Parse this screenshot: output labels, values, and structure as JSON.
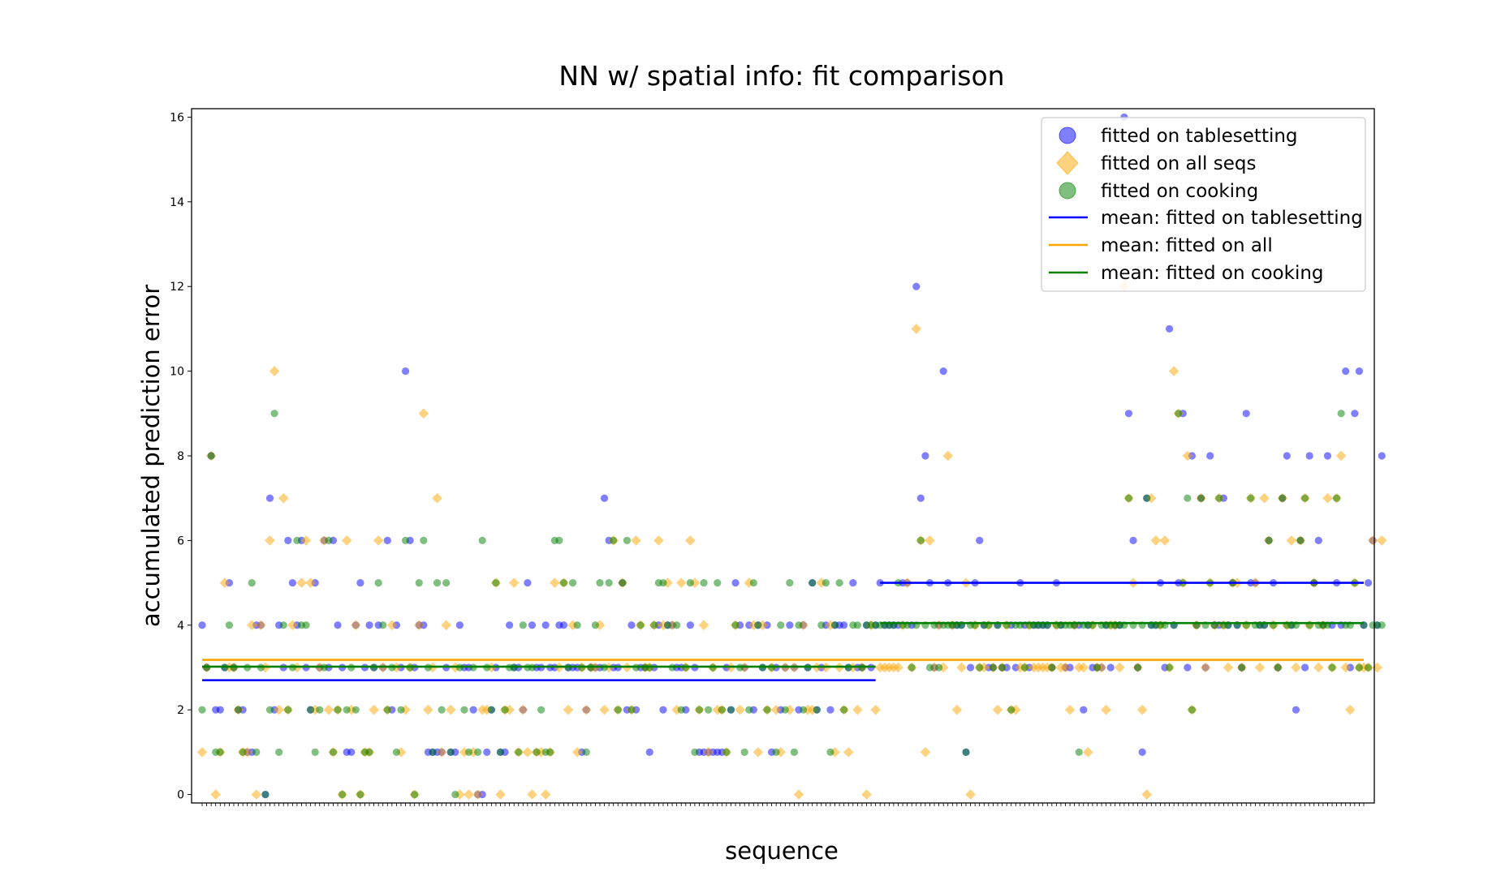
{
  "chart_data": {
    "type": "scatter",
    "title": "NN w/ spatial info: fit comparison",
    "xlabel": "sequence",
    "ylabel": "accumulated prediction error",
    "ylim": [
      -0.2,
      16.2
    ],
    "yticks": [
      0,
      2,
      4,
      6,
      8,
      10,
      12,
      14,
      16
    ],
    "grid": false,
    "legend_position": "top-right",
    "n_sequences": 258,
    "boundary_index": 150,
    "series": [
      {
        "name": "fitted on tablesetting",
        "marker": "circle",
        "color": "#0000ff",
        "values": [
          4,
          3,
          8,
          2,
          2,
          3,
          5,
          3,
          2,
          2,
          1,
          1,
          4,
          4,
          0,
          7,
          2,
          4,
          3,
          6,
          5,
          4,
          6,
          3,
          2,
          5,
          3,
          6,
          3,
          6,
          4,
          3,
          1,
          1,
          4,
          5,
          3,
          4,
          3,
          4,
          3,
          6,
          2,
          4,
          3,
          10,
          6,
          3,
          4,
          4,
          1,
          1,
          1,
          1,
          3,
          1,
          1,
          4,
          3,
          3,
          2,
          0,
          0,
          1,
          2,
          3,
          1,
          1,
          4,
          3,
          3,
          2,
          5,
          4,
          3,
          3,
          4,
          3,
          3,
          4,
          4,
          3,
          3,
          3,
          1,
          2,
          3,
          3,
          3,
          7,
          6,
          3,
          3,
          5,
          2,
          4,
          2,
          3,
          3,
          1,
          3,
          4,
          2,
          4,
          4,
          3,
          3,
          2,
          4,
          3,
          1,
          1,
          1,
          1,
          1,
          1,
          3,
          2,
          5,
          4,
          3,
          4,
          2,
          4,
          3,
          4,
          1,
          3,
          2,
          3,
          4,
          3,
          2,
          4,
          3,
          5,
          2,
          3,
          4,
          2,
          4,
          4,
          4,
          3,
          5,
          3,
          3,
          4,
          3,
          4,
          5,
          4,
          4,
          4,
          4,
          5,
          5,
          4,
          12,
          7,
          8,
          5,
          3,
          4,
          10,
          5,
          4,
          4,
          4,
          1,
          3,
          5,
          6,
          4,
          3,
          3,
          4,
          3,
          3,
          4,
          3,
          5,
          4,
          3,
          4,
          4,
          4,
          4,
          3,
          5,
          4,
          3,
          3,
          4,
          4,
          2,
          4,
          3,
          3,
          3,
          4,
          3,
          4,
          4,
          16,
          9,
          6,
          3,
          1,
          7,
          4,
          4,
          5,
          3,
          11,
          4,
          5,
          9,
          3,
          8,
          4,
          7,
          3,
          8,
          4,
          4,
          7,
          4,
          5,
          4,
          3,
          9,
          5,
          5,
          4,
          4,
          6,
          5,
          3,
          7,
          8,
          4,
          2,
          6,
          3,
          8,
          5,
          6,
          4,
          8,
          4,
          5,
          4,
          10,
          3,
          9,
          10,
          4,
          5,
          6,
          4,
          8
        ]
      },
      {
        "name": "fitted on all seqs",
        "marker": "diamond",
        "color": "#ffa500",
        "values": [
          1,
          3,
          8,
          0,
          1,
          5,
          3,
          3,
          2,
          1,
          1,
          4,
          0,
          4,
          3,
          6,
          10,
          2,
          7,
          2,
          4,
          3,
          5,
          6,
          5,
          2,
          3,
          6,
          2,
          1,
          2,
          0,
          6,
          2,
          4,
          0,
          1,
          1,
          2,
          6,
          3,
          2,
          4,
          3,
          1,
          2,
          3,
          0,
          4,
          9,
          2,
          3,
          7,
          1,
          4,
          2,
          3,
          0,
          1,
          0,
          1,
          0,
          2,
          2,
          3,
          5,
          0,
          2,
          2,
          5,
          1,
          2,
          1,
          0,
          1,
          1,
          0,
          1,
          5,
          3,
          5,
          2,
          4,
          1,
          3,
          2,
          3,
          3,
          4,
          2,
          3,
          6,
          2,
          5,
          3,
          2,
          6,
          4,
          3,
          3,
          4,
          6,
          4,
          5,
          4,
          2,
          5,
          3,
          6,
          5,
          2,
          4,
          1,
          3,
          2,
          2,
          1,
          3,
          4,
          2,
          3,
          5,
          4,
          1,
          4,
          2,
          3,
          2,
          1,
          3,
          2,
          3,
          0,
          4,
          2,
          2,
          3,
          5,
          3,
          4,
          1,
          3,
          2,
          1,
          3,
          2,
          3,
          0,
          4,
          2,
          3,
          3,
          3,
          3,
          3,
          4,
          5,
          3,
          11,
          6,
          1,
          6,
          3,
          4,
          3,
          8,
          4,
          2,
          3,
          5,
          0,
          4,
          3,
          3,
          4,
          3,
          2,
          3,
          4,
          2,
          2,
          3,
          3,
          4,
          3,
          3,
          3,
          3,
          3,
          4,
          3,
          3,
          2,
          4,
          3,
          3,
          1,
          4,
          3,
          3,
          2,
          4,
          4,
          3,
          12,
          7,
          5,
          3,
          2,
          0,
          7,
          6,
          4,
          6,
          3,
          10,
          9,
          5,
          8,
          2,
          4,
          7,
          3,
          5,
          4,
          7,
          4,
          3,
          5,
          5,
          3,
          4,
          7,
          5,
          3,
          7,
          6,
          4,
          3,
          7,
          4,
          6,
          3,
          6,
          7,
          4,
          5,
          3,
          4,
          7,
          3,
          7,
          8,
          3,
          2,
          5,
          3,
          3,
          3,
          6,
          3,
          6
        ]
      },
      {
        "name": "fitted on cooking",
        "marker": "circle",
        "color": "#008000",
        "values": [
          2,
          3,
          8,
          1,
          1,
          3,
          4,
          3,
          2,
          1,
          3,
          5,
          1,
          3,
          0,
          2,
          9,
          1,
          4,
          2,
          3,
          6,
          4,
          4,
          2,
          1,
          2,
          3,
          6,
          1,
          2,
          0,
          2,
          3,
          2,
          0,
          1,
          1,
          3,
          5,
          4,
          2,
          3,
          1,
          2,
          6,
          3,
          0,
          5,
          6,
          3,
          1,
          5,
          2,
          5,
          1,
          0,
          3,
          2,
          1,
          3,
          1,
          6,
          3,
          2,
          5,
          1,
          2,
          3,
          3,
          1,
          4,
          3,
          3,
          1,
          2,
          1,
          1,
          6,
          6,
          5,
          3,
          5,
          4,
          3,
          1,
          3,
          4,
          5,
          3,
          5,
          6,
          2,
          5,
          6,
          2,
          3,
          4,
          3,
          3,
          4,
          5,
          5,
          4,
          3,
          4,
          2,
          3,
          5,
          1,
          2,
          5,
          2,
          3,
          5,
          2,
          1,
          2,
          4,
          3,
          1,
          2,
          5,
          4,
          3,
          2,
          3,
          1,
          4,
          2,
          5,
          1,
          4,
          2,
          3,
          5,
          2,
          4,
          5,
          1,
          4,
          5,
          2,
          3,
          4,
          4,
          3,
          4,
          4,
          4,
          4,
          4,
          4,
          4,
          5,
          4,
          4,
          3,
          4,
          6,
          4,
          3,
          4,
          3,
          4,
          4,
          4,
          4,
          4,
          1,
          4,
          4,
          3,
          4,
          4,
          3,
          4,
          3,
          4,
          2,
          4,
          4,
          3,
          4,
          4,
          4,
          4,
          4,
          3,
          4,
          4,
          4,
          4,
          4,
          1,
          4,
          4,
          4,
          3,
          4,
          4,
          4,
          4,
          4,
          4,
          7,
          4,
          3,
          4,
          7,
          4,
          4,
          4,
          4,
          3,
          4,
          9,
          5,
          7,
          2,
          4,
          7,
          4,
          5,
          4,
          7,
          4,
          4,
          5,
          4,
          3,
          4,
          7,
          4,
          4,
          4,
          6,
          4,
          3,
          7,
          4,
          4,
          4,
          6,
          7,
          4,
          5,
          4,
          4,
          4,
          3,
          7,
          9,
          4,
          4,
          5,
          3,
          4,
          3,
          4,
          4,
          4
        ]
      }
    ],
    "mean_lines": [
      {
        "name": "mean: fitted on tablesetting",
        "color": "#0000ff",
        "segments": [
          {
            "from": 0,
            "to": 149,
            "y": 2.7
          },
          {
            "from": 150,
            "to": 257,
            "y": 5.0
          }
        ]
      },
      {
        "name": "mean: fitted on all",
        "color": "#ffa500",
        "segments": [
          {
            "from": 0,
            "to": 257,
            "y": 3.18
          }
        ]
      },
      {
        "name": "mean: fitted on cooking",
        "color": "#008000",
        "segments": [
          {
            "from": 0,
            "to": 149,
            "y": 3.02
          },
          {
            "from": 150,
            "to": 257,
            "y": 4.05
          }
        ]
      }
    ]
  }
}
